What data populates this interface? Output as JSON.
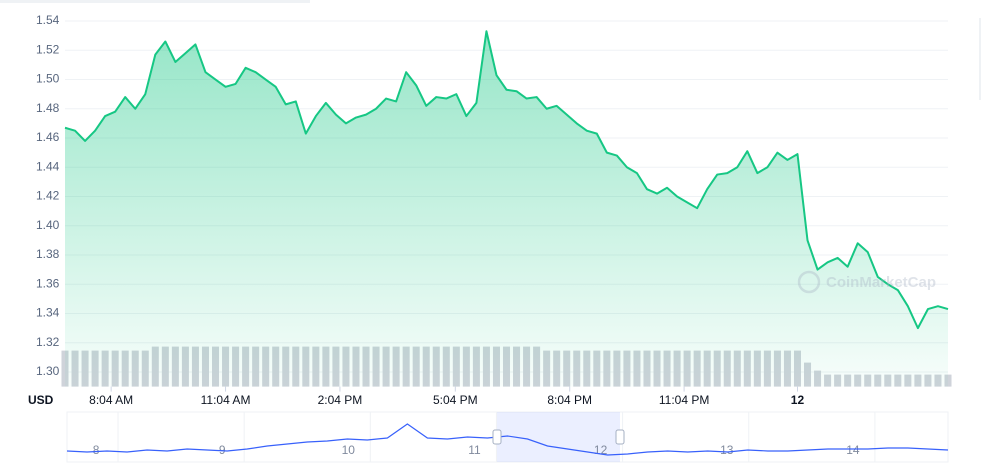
{
  "chart_data": [
    {
      "type": "area",
      "color": "#16c784",
      "watermark": "CoinMarketCap",
      "currency": "USD",
      "values": [
        1.467,
        1.465,
        1.458,
        1.465,
        1.475,
        1.478,
        1.488,
        1.48,
        1.49,
        1.517,
        1.526,
        1.512,
        1.518,
        1.524,
        1.505,
        1.5,
        1.495,
        1.497,
        1.508,
        1.505,
        1.5,
        1.495,
        1.483,
        1.485,
        1.463,
        1.475,
        1.484,
        1.476,
        1.47,
        1.474,
        1.476,
        1.48,
        1.487,
        1.485,
        1.505,
        1.496,
        1.482,
        1.488,
        1.487,
        1.49,
        1.475,
        1.484,
        1.533,
        1.503,
        1.493,
        1.492,
        1.487,
        1.488,
        1.48,
        1.482,
        1.476,
        1.47,
        1.465,
        1.463,
        1.45,
        1.448,
        1.44,
        1.436,
        1.425,
        1.422,
        1.426,
        1.42,
        1.416,
        1.412,
        1.425,
        1.435,
        1.436,
        1.44,
        1.451,
        1.436,
        1.44,
        1.45,
        1.445,
        1.449,
        1.39,
        1.37,
        1.375,
        1.378,
        1.372,
        1.388,
        1.382,
        1.365,
        1.36,
        1.356,
        1.345,
        1.33,
        1.343,
        1.345,
        1.343
      ],
      "volume": {
        "color": "#cfd3da",
        "ylim": [
          0,
          100
        ],
        "values": [
          36,
          36,
          36,
          36,
          36,
          36,
          36,
          36,
          36,
          40,
          40,
          40,
          40,
          40,
          40,
          40,
          40,
          40,
          40,
          40,
          40,
          40,
          40,
          40,
          40,
          40,
          40,
          40,
          40,
          40,
          40,
          40,
          40,
          40,
          40,
          40,
          40,
          40,
          40,
          40,
          40,
          40,
          40,
          40,
          40,
          40,
          40,
          40,
          36,
          36,
          36,
          36,
          36,
          36,
          36,
          36,
          36,
          36,
          36,
          36,
          36,
          36,
          36,
          36,
          36,
          36,
          36,
          36,
          36,
          36,
          36,
          36,
          36,
          36,
          24,
          16,
          12,
          12,
          12,
          12,
          12,
          12,
          12,
          12,
          12,
          12,
          12,
          12,
          12
        ]
      },
      "xlim": [
        0,
        88
      ],
      "xticks": [
        {
          "value": 4.6,
          "label": "8:04 AM"
        },
        {
          "value": 16.0,
          "label": "11:04 AM"
        },
        {
          "value": 27.4,
          "label": "2:04 PM"
        },
        {
          "value": 38.9,
          "label": "5:04 PM"
        },
        {
          "value": 50.3,
          "label": "8:04 PM"
        },
        {
          "value": 61.7,
          "label": "11:04 PM"
        },
        {
          "value": 73.0,
          "label": "12"
        }
      ],
      "ylim": [
        1.29,
        1.55
      ],
      "yticks": [
        {
          "value": 1.3,
          "label": "1.30"
        },
        1.32,
        1.34,
        1.36,
        1.38,
        {
          "value": 1.4,
          "label": "1.40"
        },
        1.42,
        1.44,
        1.46,
        1.48,
        {
          "value": 1.5,
          "label": "1.50"
        },
        1.52,
        1.54
      ],
      "grid": true
    },
    {
      "type": "line",
      "color": "#3861fb",
      "values": [
        1.31,
        1.3,
        1.31,
        1.3,
        1.32,
        1.31,
        1.33,
        1.32,
        1.31,
        1.33,
        1.36,
        1.38,
        1.4,
        1.41,
        1.43,
        1.42,
        1.44,
        1.58,
        1.44,
        1.43,
        1.45,
        1.44,
        1.46,
        1.43,
        1.36,
        1.33,
        1.3,
        1.27,
        1.28,
        1.3,
        1.31,
        1.3,
        1.31,
        1.3,
        1.32,
        1.31,
        1.31,
        1.32,
        1.33,
        1.33,
        1.33,
        1.34,
        1.34,
        1.33,
        1.32
      ],
      "xlim": [
        0,
        44
      ],
      "ylim": [
        1.2,
        1.7
      ],
      "xticks": [
        {
          "value": 1.45,
          "label": "8"
        },
        {
          "value": 7.75,
          "label": "9"
        },
        {
          "value": 14.05,
          "label": "10"
        },
        {
          "value": 20.35,
          "label": "11"
        },
        {
          "value": 26.65,
          "label": "12"
        },
        {
          "value": 32.95,
          "label": "13"
        },
        {
          "value": 39.25,
          "label": "14"
        }
      ]
    }
  ]
}
